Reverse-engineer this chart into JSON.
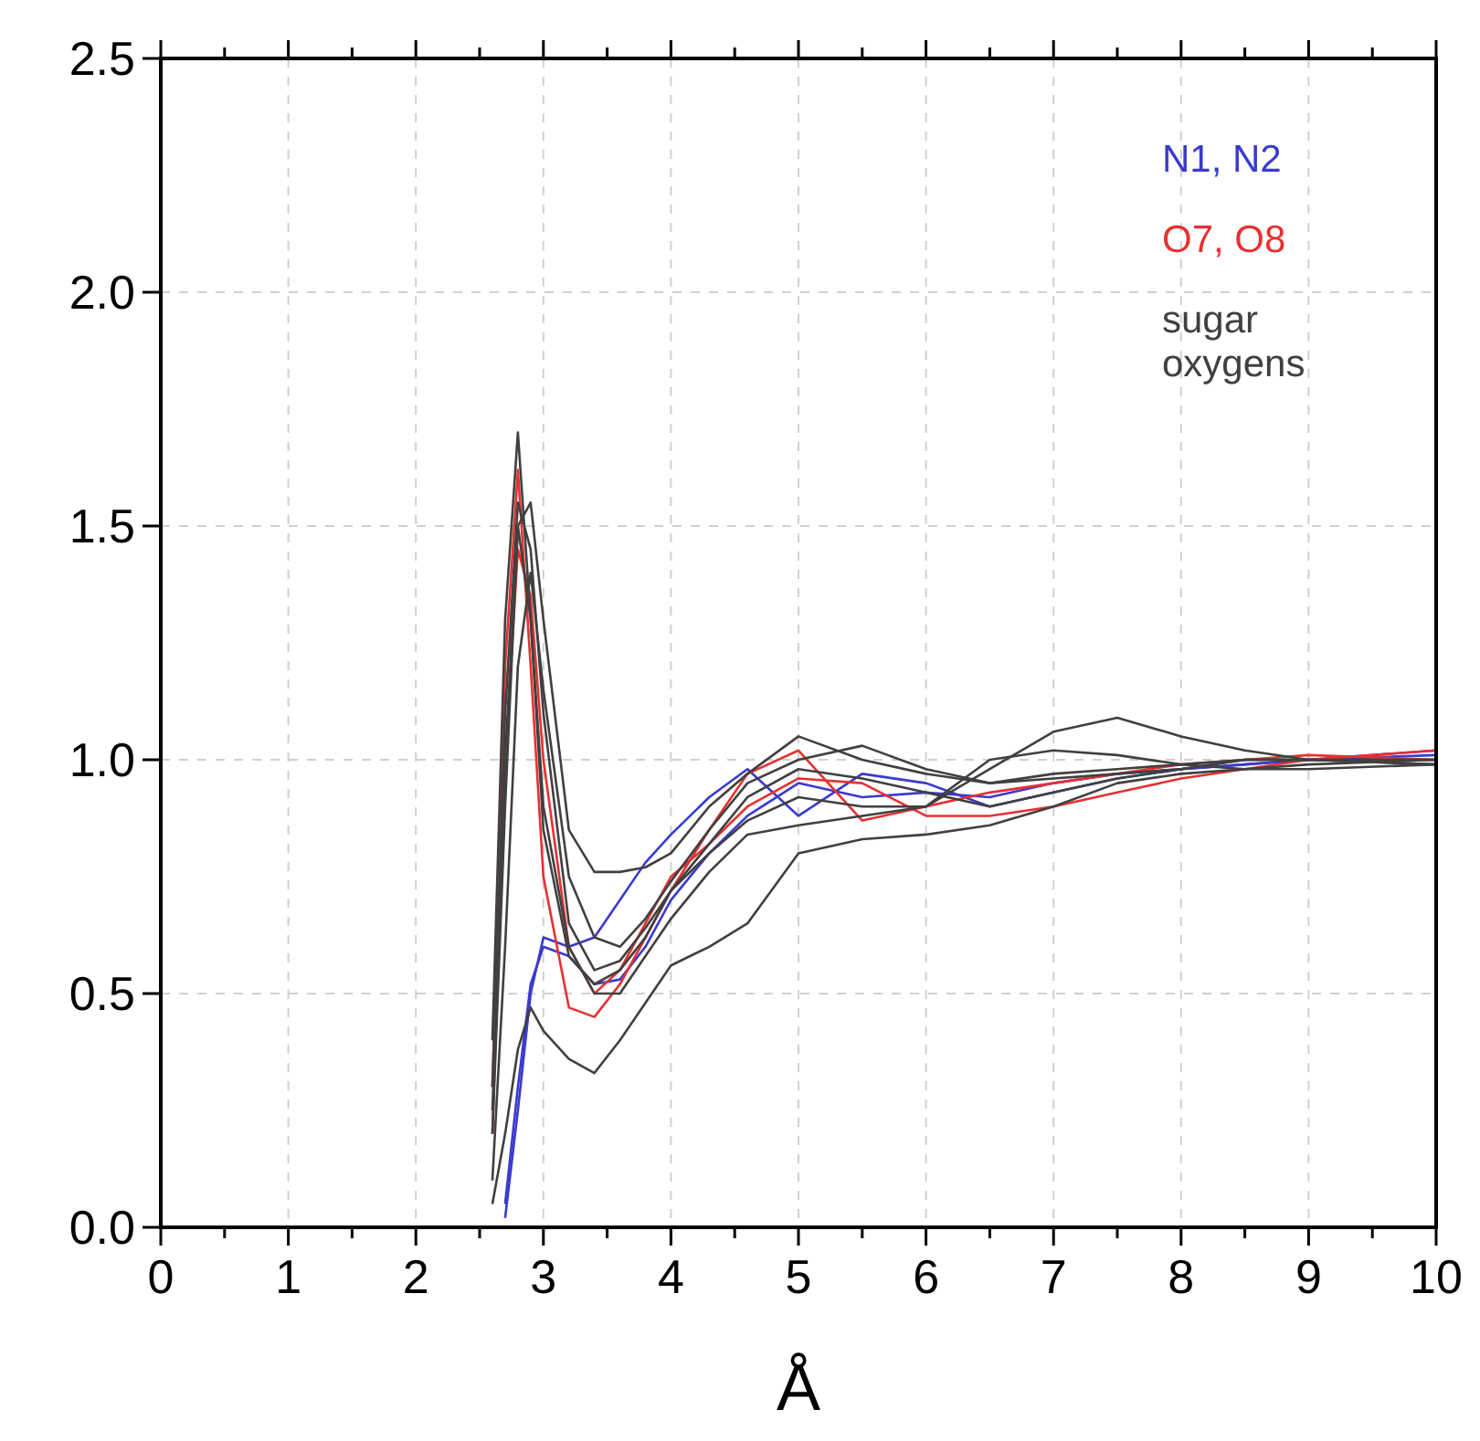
{
  "chart_data": {
    "type": "line",
    "xlabel": "Å",
    "legend": "top right",
    "grid": true,
    "marker": "none",
    "line_style": "solid",
    "x": [
      2.6,
      2.7,
      2.8,
      2.9,
      3.0,
      3.2,
      3.4,
      3.6,
      3.8,
      4.0,
      4.3,
      4.6,
      5.0,
      5.5,
      6.0,
      6.5,
      7.0,
      7.5,
      8.0,
      8.5,
      9.0,
      10
    ],
    "xlim": [
      0,
      10
    ],
    "xticks": [
      0,
      {
        "value": 0.5,
        "label": null
      },
      1,
      {
        "value": 1.5,
        "label": null
      },
      2,
      {
        "value": 2.5,
        "label": null
      },
      3,
      {
        "value": 3.5,
        "label": null
      },
      4,
      {
        "value": 4.5,
        "label": null
      },
      5,
      {
        "value": 5.5,
        "label": null
      },
      6,
      {
        "value": 6.5,
        "label": null
      },
      7,
      {
        "value": 7.5,
        "label": null
      },
      8,
      {
        "value": 8.5,
        "label": null
      },
      9,
      {
        "value": 9.5,
        "label": null
      },
      10
    ],
    "ylim": [
      0,
      2.5
    ],
    "yticks": [
      {
        "value": 0,
        "label": "0.0"
      },
      {
        "value": 0.5,
        "label": "0.5"
      },
      {
        "value": 1,
        "label": "1.0"
      },
      {
        "value": 1.5,
        "label": "1.5"
      },
      {
        "value": 2,
        "label": "2.0"
      },
      {
        "value": 2.5,
        "label": "2.5"
      }
    ],
    "series": [
      {
        "name": "N1, N2",
        "color": "#3a3ad0",
        "values": [
          null,
          0.02,
          0.25,
          0.5,
          0.62,
          0.6,
          0.62,
          0.7,
          0.78,
          0.84,
          0.92,
          0.98,
          0.88,
          0.97,
          0.95,
          0.9,
          0.93,
          0.96,
          0.98,
          0.99,
          1.0,
          1.02
        ]
      },
      {
        "color": "#3a3ad0",
        "values": [
          null,
          0.05,
          0.3,
          0.52,
          0.6,
          0.58,
          0.52,
          0.53,
          0.6,
          0.7,
          0.8,
          0.88,
          0.95,
          0.92,
          0.93,
          0.92,
          0.95,
          0.97,
          0.98,
          0.99,
          1.0,
          1.01
        ]
      },
      {
        "name": "O7, O8",
        "color": "#e83030",
        "values": [
          0.3,
          1.2,
          1.62,
          1.2,
          0.75,
          0.47,
          0.45,
          0.52,
          0.62,
          0.72,
          0.85,
          0.97,
          1.02,
          0.87,
          0.9,
          0.93,
          0.95,
          0.97,
          0.99,
          1.0,
          1.01,
          1.0
        ]
      },
      {
        "color": "#e83030",
        "values": [
          0.2,
          1.0,
          1.45,
          1.35,
          1.0,
          0.6,
          0.5,
          0.55,
          0.65,
          0.75,
          0.82,
          0.9,
          0.96,
          0.95,
          0.88,
          0.88,
          0.9,
          0.93,
          0.96,
          0.98,
          1.0,
          1.02
        ]
      },
      {
        "name": "sugar oxygens",
        "color": "#404040",
        "values": [
          0.4,
          1.3,
          1.7,
          1.3,
          0.85,
          0.58,
          0.52,
          0.55,
          0.62,
          0.72,
          0.82,
          0.92,
          0.98,
          0.96,
          0.93,
          0.9,
          0.93,
          0.96,
          0.98,
          1.0,
          1.0,
          1.0
        ]
      },
      {
        "color": "#404040",
        "values": [
          0.2,
          0.9,
          1.5,
          1.55,
          1.3,
          0.85,
          0.76,
          0.76,
          0.77,
          0.8,
          0.9,
          0.97,
          1.05,
          1.0,
          0.97,
          0.95,
          0.96,
          0.97,
          0.98,
          1.0,
          1.0,
          1.0
        ]
      },
      {
        "color": "#404040",
        "values": [
          0.1,
          0.6,
          1.2,
          1.4,
          1.15,
          0.75,
          0.62,
          0.6,
          0.66,
          0.74,
          0.85,
          0.95,
          1.0,
          1.03,
          0.98,
          0.95,
          0.97,
          0.98,
          0.99,
          1.0,
          1.0,
          0.99
        ]
      },
      {
        "color": "#404040",
        "values": [
          0.05,
          0.2,
          0.38,
          0.47,
          0.42,
          0.36,
          0.33,
          0.4,
          0.48,
          0.56,
          0.6,
          0.65,
          0.8,
          0.83,
          0.84,
          0.86,
          0.9,
          0.95,
          0.97,
          0.98,
          0.99,
          1.0
        ]
      },
      {
        "color": "#404040",
        "values": [
          0.3,
          1.1,
          1.55,
          1.45,
          1.1,
          0.65,
          0.55,
          0.57,
          0.64,
          0.72,
          0.8,
          0.87,
          0.92,
          0.9,
          0.9,
          0.98,
          1.06,
          1.09,
          1.05,
          1.02,
          1.0,
          0.99
        ]
      },
      {
        "color": "#404040",
        "values": [
          0.25,
          1.0,
          1.5,
          1.3,
          0.9,
          0.6,
          0.5,
          0.5,
          0.58,
          0.66,
          0.76,
          0.84,
          0.86,
          0.88,
          0.9,
          1.0,
          1.02,
          1.01,
          0.99,
          0.98,
          0.98,
          0.99
        ]
      }
    ]
  }
}
